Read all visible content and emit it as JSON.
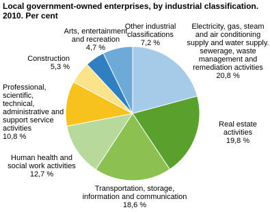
{
  "chart_data": {
    "type": "pie",
    "title": "Local government-owned enterprises, by industrial classification.",
    "subtitle": "2010. Per cent",
    "categories": [
      "Electricity, gas, steam and air conditioning supply and water supply. sewerage, waste management and remediation activities",
      "Real estate activities",
      "Transportation, storage, information and communication",
      "Human health and social work activities",
      "Professional, scientific, technical, administrative and support service activities",
      "Construction",
      "Arts, entertainment and recreation",
      "Other industrial classifications"
    ],
    "values": [
      20.8,
      19.8,
      18.6,
      12.7,
      10.8,
      5.3,
      4.7,
      7.2
    ],
    "value_labels": [
      "20,8 %",
      "19,8 %",
      "18,6 %",
      "12,7 %",
      "10,8 %",
      "5,3 %",
      "4,7 %",
      "7,2 %"
    ],
    "colors": [
      "#a6cbe8",
      "#5aa02c",
      "#8cc152",
      "#b8d99c",
      "#f7c21e",
      "#fbe38c",
      "#2f7fc1",
      "#6eaad8"
    ]
  }
}
